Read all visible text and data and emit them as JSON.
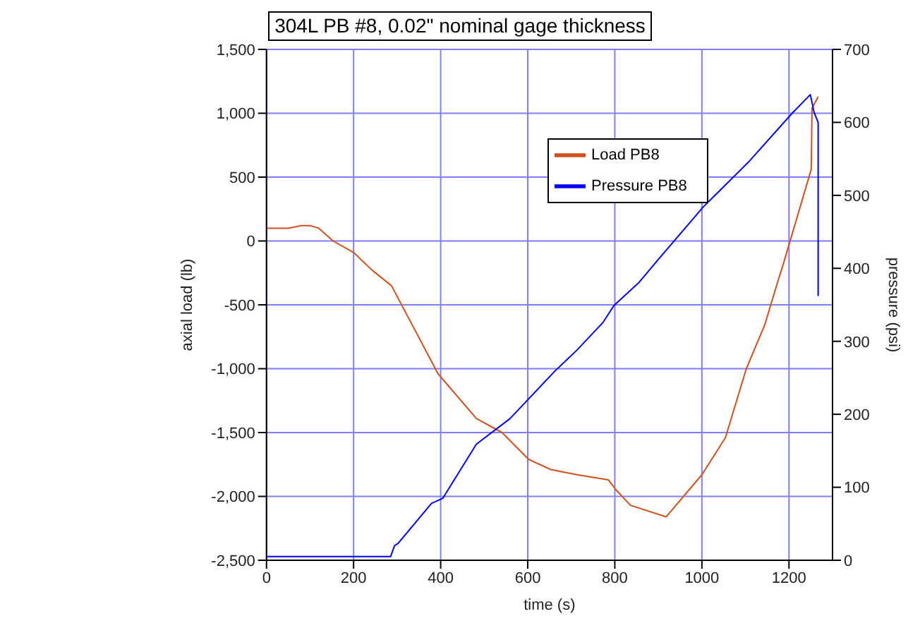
{
  "chart_data": {
    "type": "line",
    "title": "304L PB #8, 0.02\" nominal gage thickness",
    "xlabel": "time (s)",
    "ylabel": "axial load (lb)",
    "y2label": "pressure (psi)",
    "xlim": [
      0,
      1300
    ],
    "xticks": [
      0,
      200,
      400,
      600,
      800,
      1000,
      1200
    ],
    "ylim": [
      -2500,
      1500
    ],
    "yticks": [
      {
        "value": -2500,
        "label": "-2,500"
      },
      {
        "value": -2000,
        "label": "-2,000"
      },
      {
        "value": -1500,
        "label": "-1,500"
      },
      {
        "value": -1000,
        "label": "-1,000"
      },
      -500,
      0,
      500,
      {
        "value": 1000,
        "label": "1,000"
      },
      {
        "value": 1500,
        "label": "1,500"
      }
    ],
    "y2lim": [
      0,
      700
    ],
    "y2ticks": [
      0,
      100,
      200,
      300,
      400,
      500,
      600,
      700
    ],
    "grid": true,
    "legend": "top right",
    "series": [
      {
        "name": "Load PB8",
        "color": "#d2501e",
        "x": [
          0,
          50,
          80,
          100,
          120,
          153,
          200,
          243,
          287,
          394,
          482,
          541,
          602,
          653,
          713,
          785,
          803,
          836,
          918,
          1000,
          1054,
          1102,
          1144,
          1174,
          1187,
          1251,
          1253,
          1267
        ],
        "values": [
          100,
          100,
          120,
          120,
          100,
          0,
          -90,
          -230,
          -350,
          -1040,
          -1390,
          -1500,
          -1710,
          -1790,
          -1830,
          -1870,
          -1950,
          -2070,
          -2160,
          -1830,
          -1540,
          -1000,
          -660,
          -320,
          -180,
          560,
          1040,
          1130
        ]
      },
      {
        "name": "Pressure PB8",
        "color": "#0000ff",
        "axis": "y2",
        "x": [
          0,
          285,
          294,
          302,
          379,
          405,
          482,
          559,
          662,
          713,
          773,
          798,
          856,
          901,
          1003,
          1106,
          1208,
          1249,
          1258,
          1267,
          1267
        ],
        "values": [
          5,
          5,
          20,
          23,
          78,
          85,
          159,
          194,
          259,
          288,
          326,
          349,
          381,
          413,
          484,
          545,
          613,
          638,
          613,
          600,
          362
        ]
      }
    ]
  }
}
